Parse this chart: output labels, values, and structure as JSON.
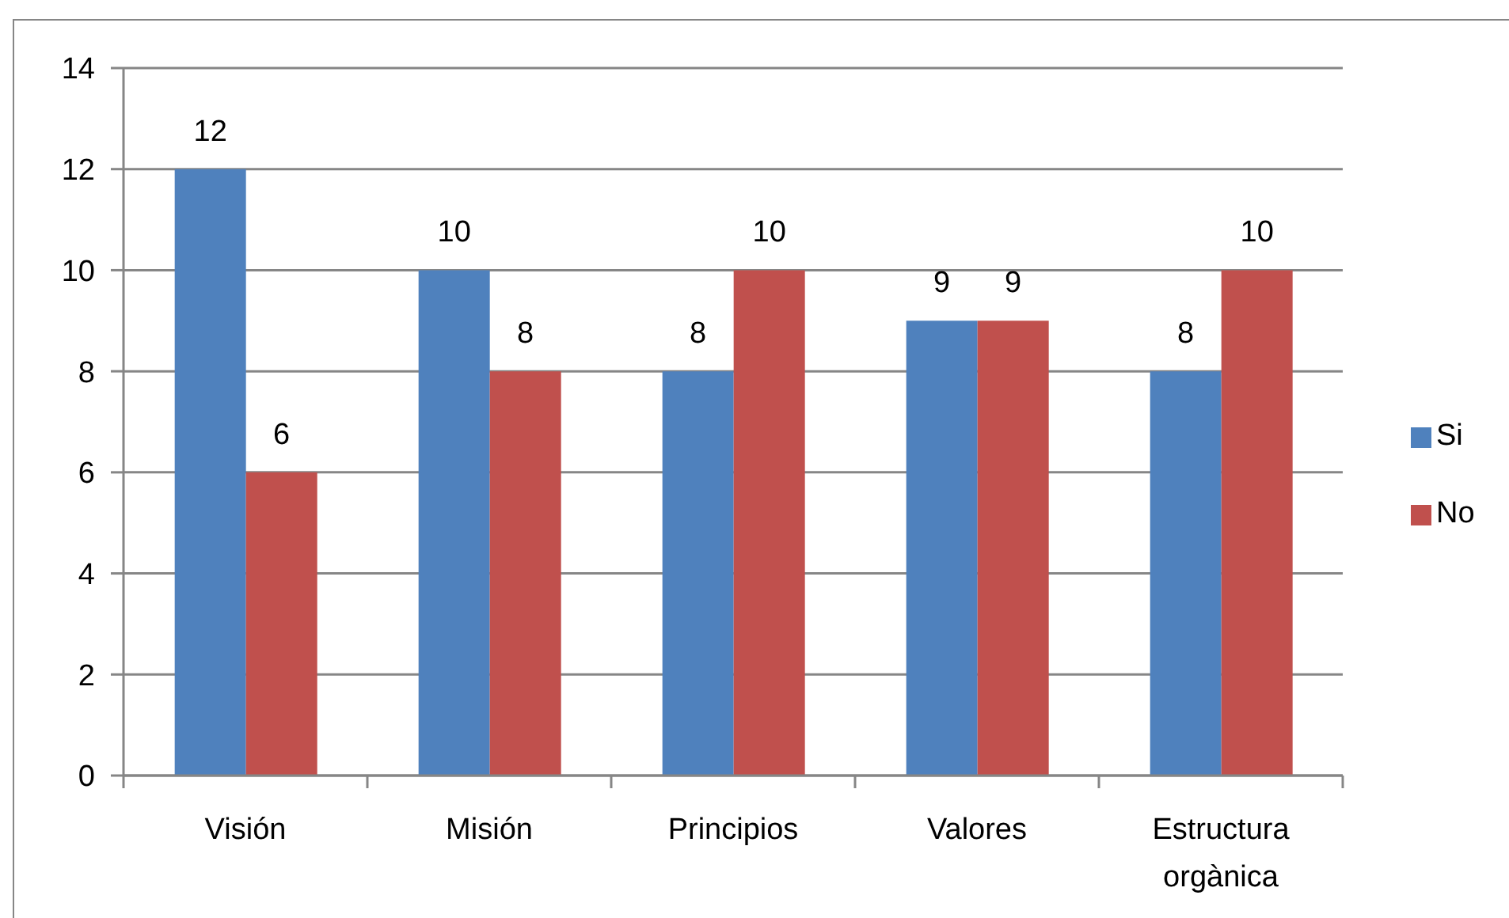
{
  "chart_data": {
    "type": "bar",
    "categories": [
      "Visión",
      "Misión",
      "Principios",
      "Valores",
      "Estructura orgànica"
    ],
    "series": [
      {
        "name": "Si",
        "color": "#4f81bd",
        "values": [
          12,
          10,
          8,
          9,
          8
        ]
      },
      {
        "name": "No",
        "color": "#c0504d",
        "values": [
          6,
          8,
          10,
          9,
          10
        ]
      }
    ],
    "ylim": [
      0,
      14
    ],
    "yticks": [
      0,
      2,
      4,
      6,
      8,
      10,
      12,
      14
    ],
    "grid": "y",
    "legend": "right",
    "data_labels": true
  }
}
